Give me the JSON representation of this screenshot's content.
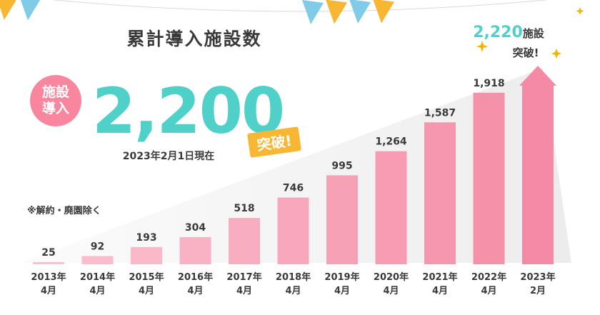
{
  "headline": {
    "title": "累計導入施設数",
    "badge_line1": "施設",
    "badge_line2": "導入",
    "big_number": "2,200",
    "breakthrough": "突破!",
    "as_of": "2023年2月1日現在",
    "note": "※解約・廃園除く"
  },
  "callout": {
    "line1_number": "2,220",
    "line1_suffix": "施設",
    "line2": "突破!"
  },
  "colors": {
    "bar_light": "#fbc3d1",
    "bar_mid": "#f99bb2",
    "bar_dark": "#f58ba6",
    "arrow": "#f48aa5",
    "teal": "#4fd1c9",
    "badge": "#f9869f",
    "orange_tag": "#f7b733",
    "text": "#3a3a3a",
    "sparkle": "#f5b400"
  },
  "bunting": {
    "flags": [
      "#f7b733",
      "#7fcbe8",
      "#f7b733",
      "#7fcbe8",
      "#f7b733",
      "#7fcbe8",
      "#f7b733",
      "#7fcbe8",
      "#f7b733",
      "#7fcbe8",
      "#f7b733",
      "#7fcbe8",
      "#f7b733",
      "#7fcbe8",
      "#f7b733",
      "#7fcbe8",
      "#f7b733"
    ]
  },
  "chart_data": {
    "type": "bar",
    "categories": [
      [
        "2013年",
        "4月"
      ],
      [
        "2014年",
        "4月"
      ],
      [
        "2015年",
        "4月"
      ],
      [
        "2016年",
        "4月"
      ],
      [
        "2017年",
        "4月"
      ],
      [
        "2018年",
        "4月"
      ],
      [
        "2019年",
        "4月"
      ],
      [
        "2020年",
        "4月"
      ],
      [
        "2021年",
        "4月"
      ],
      [
        "2022年",
        "4月"
      ],
      [
        "2023年",
        "2月"
      ]
    ],
    "values": [
      25,
      92,
      193,
      304,
      518,
      746,
      995,
      1264,
      1587,
      1918,
      2220
    ],
    "value_labels": [
      "25",
      "92",
      "193",
      "304",
      "518",
      "746",
      "995",
      "1,264",
      "1,587",
      "1,918",
      ""
    ],
    "ylim": [
      0,
      2220
    ],
    "last_bar_style": "arrow",
    "grid": false
  }
}
